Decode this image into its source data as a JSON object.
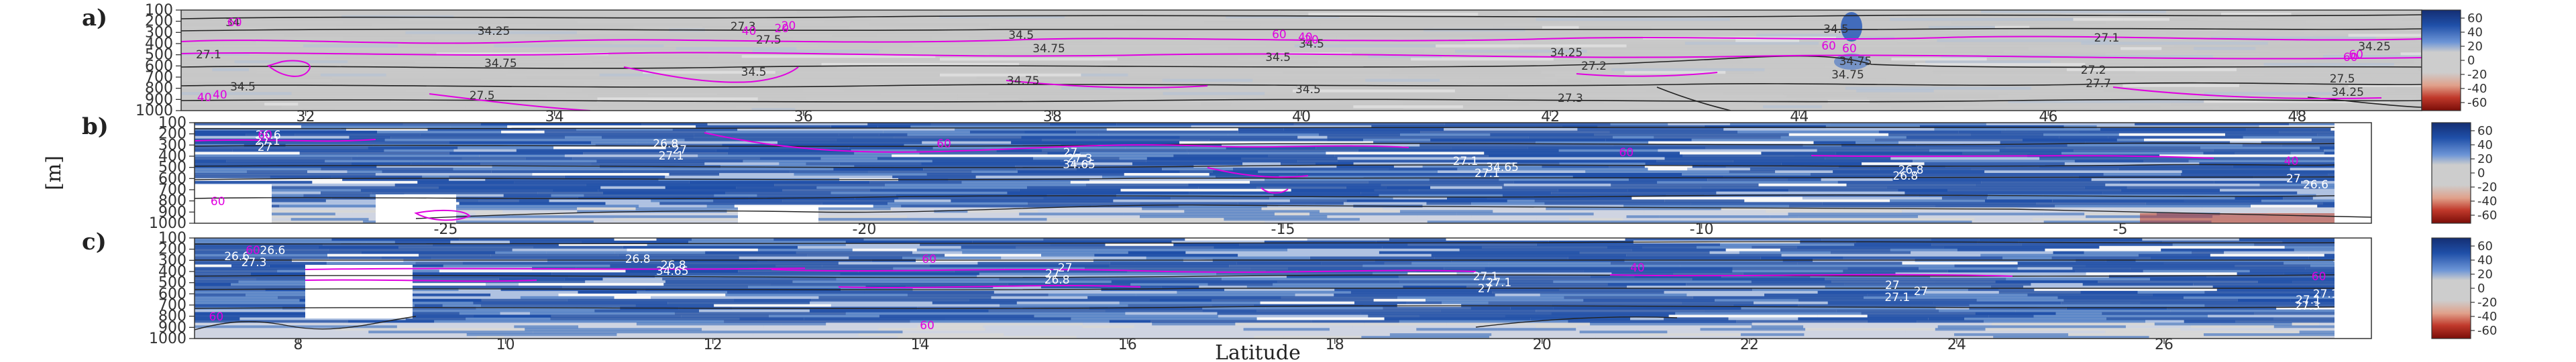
{
  "chart_data": [
    {
      "type": "heatmap",
      "panel_label": "a)",
      "x_ticks": [
        32,
        34,
        36,
        38,
        40,
        42,
        44,
        46,
        48
      ],
      "xlim": [
        31,
        49
      ],
      "y_ticks": [
        100,
        200,
        300,
        400,
        500,
        600,
        700,
        800,
        900,
        1000
      ],
      "ylim": [
        1000,
        100
      ],
      "colorbar_ticks": [
        "60",
        "40",
        "20",
        "0",
        "-20",
        "-40",
        "-60"
      ],
      "black_contour_labels": [
        "34",
        "34.25",
        "27.5",
        "34.75",
        "34.5",
        "27.2",
        "34.75",
        "27.7",
        "34.25",
        "27.1",
        "34.75",
        "34.5",
        "34.75",
        "34.5",
        "27.3",
        "34.5",
        "27.1",
        "34.25",
        "34.5",
        "27.5",
        "27.3",
        "34.5",
        "34.5",
        "34.25",
        "34.75",
        "27.2",
        "27.5"
      ],
      "magenta_contour_labels": [
        "60",
        "40",
        "20",
        "60",
        "60",
        "40",
        "20",
        "40",
        "60",
        "60",
        "40",
        "20",
        "60"
      ]
    },
    {
      "type": "heatmap",
      "panel_label": "b)",
      "x_ticks": [
        -25,
        -20,
        -15,
        -10,
        -5
      ],
      "xlim": [
        -28,
        -2
      ],
      "y_ticks": [
        100,
        200,
        300,
        400,
        500,
        600,
        700,
        800,
        900,
        1000
      ],
      "ylim": [
        1000,
        100
      ],
      "colorbar_ticks": [
        "60",
        "40",
        "20",
        "0",
        "-20",
        "-40",
        "-60"
      ],
      "black_contour_labels": [
        "26.6",
        "26.8",
        "27",
        "27.1",
        "26.8",
        "27",
        "27.1",
        "27",
        "27.3",
        "34.65",
        "26.8",
        "26.6",
        "27",
        "27.1",
        "34.65",
        "27.1"
      ],
      "magenta_contour_labels": [
        "60",
        "60",
        "60",
        "40",
        "60"
      ]
    },
    {
      "type": "heatmap",
      "panel_label": "c)",
      "x_ticks": [
        8,
        10,
        12,
        14,
        16,
        18,
        20,
        22,
        24,
        26
      ],
      "xlim": [
        7,
        28
      ],
      "y_ticks": [
        100,
        200,
        300,
        400,
        500,
        600,
        700,
        800,
        900,
        1000
      ],
      "ylim": [
        1000,
        100
      ],
      "xlabel": "Latitude",
      "colorbar_ticks": [
        "60",
        "40",
        "20",
        "0",
        "-20",
        "-40",
        "-60"
      ],
      "black_contour_labels": [
        "26.6",
        "26.8",
        "27",
        "27.1",
        "27",
        "27.1",
        "26.6",
        "26.8",
        "27",
        "27.1",
        "27",
        "27.1",
        "27.3",
        "34.65",
        "26.8",
        "27",
        "27.1",
        "27.3"
      ],
      "magenta_contour_labels": [
        "60",
        "60",
        "40",
        "60",
        "60",
        "60"
      ]
    }
  ],
  "shared": {
    "ylabel": "[m]",
    "colors": {
      "blue_dark": "#1f4fa8",
      "blue_mid": "#3a72c8",
      "neutral": "#cdcdcd",
      "red_dark": "#9e1a10",
      "magenta": "#e000e0",
      "contour_black": "#222222"
    }
  }
}
